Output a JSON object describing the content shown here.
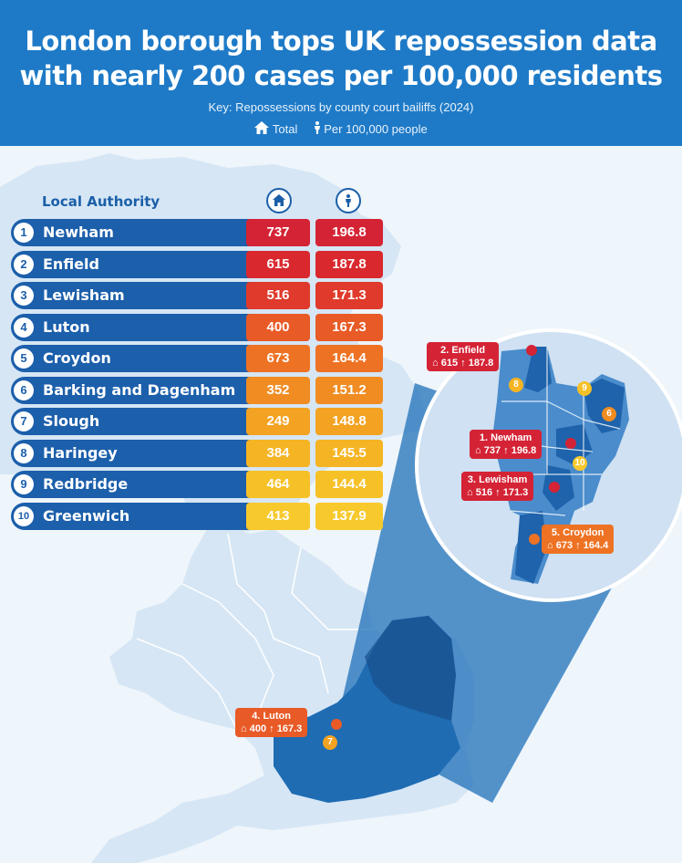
{
  "header": {
    "title_line1": "London borough tops UK repossession data",
    "title_line2": "with nearly 200 cases per 100,000 residents",
    "key_line": "Key:  Repossessions by county court bailiffs (2024)",
    "legend_total": "Total",
    "legend_per": "Per 100,000 people"
  },
  "table": {
    "header_local_authority": "Local Authority",
    "rows": [
      {
        "rank": "1",
        "name": "Newham",
        "total": "737",
        "per100k": "196.8"
      },
      {
        "rank": "2",
        "name": "Enfield",
        "total": "615",
        "per100k": "187.8"
      },
      {
        "rank": "3",
        "name": "Lewisham",
        "total": "516",
        "per100k": "171.3"
      },
      {
        "rank": "4",
        "name": "Luton",
        "total": "400",
        "per100k": "167.3"
      },
      {
        "rank": "5",
        "name": "Croydon",
        "total": "673",
        "per100k": "164.4"
      },
      {
        "rank": "6",
        "name": "Barking and Dagenham",
        "total": "352",
        "per100k": "151.2"
      },
      {
        "rank": "7",
        "name": "Slough",
        "total": "249",
        "per100k": "148.8"
      },
      {
        "rank": "8",
        "name": "Haringey",
        "total": "384",
        "per100k": "145.5"
      },
      {
        "rank": "9",
        "name": "Redbridge",
        "total": "464",
        "per100k": "144.4"
      },
      {
        "rank": "10",
        "name": "Greenwich",
        "total": "413",
        "per100k": "137.9"
      }
    ]
  },
  "pins": {
    "enfield": {
      "title": "2. Enfield",
      "total": "615",
      "per": "187.8"
    },
    "newham": {
      "title": "1. Newham",
      "total": "737",
      "per": "196.8"
    },
    "lewisham": {
      "title": "3. Lewisham",
      "total": "516",
      "per": "171.3"
    },
    "croydon": {
      "title": "5. Croydon",
      "total": "673",
      "per": "164.4"
    },
    "luton": {
      "title": "4. Luton",
      "total": "400",
      "per": "167.3"
    }
  },
  "markers": {
    "m6": "6",
    "m7": "7",
    "m8": "8",
    "m9": "9",
    "m10": "10"
  },
  "colors": {
    "header_bg": "#1e7ac7",
    "row_bar": "#1c5fab",
    "rank_colors": [
      "#d42335",
      "#d9292e",
      "#df3a2b",
      "#e85a26",
      "#ee7223",
      "#f08c22",
      "#f3a221",
      "#f5b423",
      "#f6c127",
      "#f7c92c"
    ]
  }
}
